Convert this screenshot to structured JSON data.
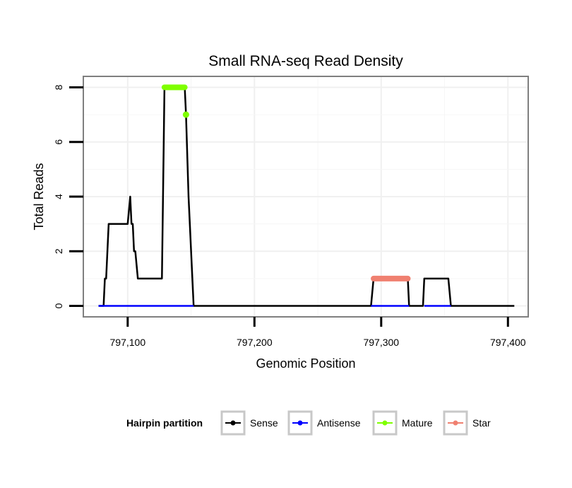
{
  "chart_data": {
    "type": "line",
    "title": "Small RNA-seq Read Density",
    "xlabel": "Genomic Position",
    "ylabel": "Total Reads",
    "xlim": [
      797065,
      797416
    ],
    "ylim": [
      -0.4,
      8.4
    ],
    "x_ticks": [
      797100,
      797200,
      797300,
      797400
    ],
    "x_tick_labels": [
      "797,100",
      "797,200",
      "797,300",
      "797,400"
    ],
    "y_ticks": [
      0,
      2,
      4,
      6,
      8
    ],
    "y_tick_labels": [
      "0",
      "2",
      "4",
      "6",
      "8"
    ],
    "grid": true,
    "legend": {
      "title": "Hairpin partition",
      "position": "bottom",
      "entries": [
        "Sense",
        "Antisense",
        "Mature",
        "Star"
      ]
    },
    "series": [
      {
        "name": "Sense",
        "color": "#000000",
        "style": "line",
        "x": [
          797077,
          797081,
          797082,
          797083,
          797085,
          797100,
          797102,
          797103,
          797104,
          797105,
          797106,
          797108,
          797127,
          797129,
          797145,
          797146,
          797148,
          797149,
          797152,
          797292,
          797294,
          797321,
          797322,
          797333,
          797334,
          797353,
          797355,
          797405
        ],
        "y": [
          0,
          0,
          1,
          1,
          3,
          3,
          4,
          3,
          3,
          2,
          2,
          1,
          1,
          8,
          8,
          7,
          4,
          3,
          0,
          0,
          1,
          1,
          0,
          0,
          1,
          1,
          0,
          0
        ]
      },
      {
        "name": "Antisense",
        "color": "#0000ff",
        "style": "line",
        "segments": [
          [
            797077,
            797152
          ],
          [
            797292,
            797322
          ],
          [
            797334,
            797355
          ]
        ],
        "y": 0
      },
      {
        "name": "Mature",
        "color": "#7fff00",
        "style": "points",
        "segments": [
          {
            "x": [
              797129,
              797145
            ],
            "y": 8
          }
        ],
        "points": [
          {
            "x": 797146,
            "y": 7
          }
        ]
      },
      {
        "name": "Star",
        "color": "#f08070",
        "style": "points",
        "segments": [
          {
            "x": [
              797294,
              797321
            ],
            "y": 1
          }
        ],
        "points": []
      }
    ]
  }
}
